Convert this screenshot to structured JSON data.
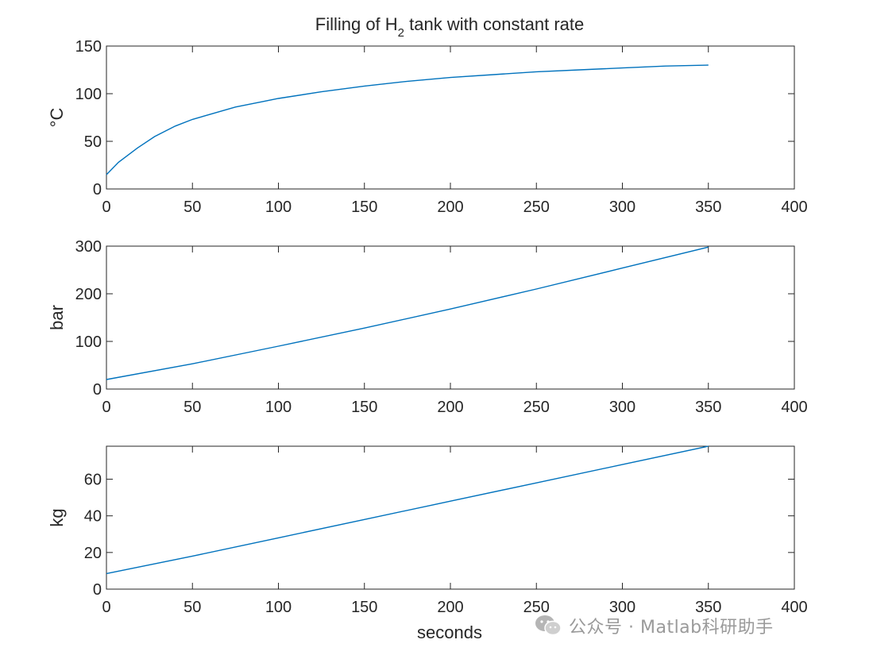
{
  "chart_data": [
    {
      "type": "line",
      "title": "Filling of H",
      "title_subscript": "2",
      "title_suffix": " tank with constant rate",
      "xlabel": "",
      "ylabel": "°C",
      "xlim": [
        0,
        400
      ],
      "ylim": [
        0,
        150
      ],
      "xticks": [
        0,
        50,
        100,
        150,
        200,
        250,
        300,
        350,
        400
      ],
      "yticks": [
        0,
        50,
        100,
        150
      ],
      "grid": false,
      "color": "#0072BD",
      "series": [
        {
          "x": [
            0,
            7,
            18,
            28,
            40,
            50,
            75,
            100,
            125,
            150,
            175,
            200,
            225,
            250,
            275,
            300,
            325,
            350
          ],
          "y": [
            15,
            28,
            43,
            55,
            66,
            73,
            86,
            95,
            102,
            108,
            113,
            117,
            120,
            123,
            125,
            127,
            129,
            130
          ]
        }
      ]
    },
    {
      "type": "line",
      "title": "",
      "xlabel": "",
      "ylabel": "bar",
      "xlim": [
        0,
        400
      ],
      "ylim": [
        0,
        300
      ],
      "xticks": [
        0,
        50,
        100,
        150,
        200,
        250,
        300,
        350,
        400
      ],
      "yticks": [
        0,
        100,
        200,
        300
      ],
      "grid": false,
      "color": "#0072BD",
      "series": [
        {
          "x": [
            0,
            50,
            100,
            150,
            200,
            250,
            300,
            350
          ],
          "y": [
            20,
            53,
            90,
            128,
            168,
            210,
            254,
            298
          ]
        }
      ]
    },
    {
      "type": "line",
      "title": "",
      "xlabel": "seconds",
      "ylabel": "kg",
      "xlim": [
        0,
        400
      ],
      "ylim": [
        0,
        78
      ],
      "xticks": [
        0,
        50,
        100,
        150,
        200,
        250,
        300,
        350,
        400
      ],
      "yticks": [
        0,
        20,
        40,
        60
      ],
      "grid": false,
      "color": "#0072BD",
      "series": [
        {
          "x": [
            0,
            50,
            100,
            150,
            200,
            250,
            300,
            350
          ],
          "y": [
            8.5,
            18,
            28,
            38,
            48,
            58,
            68,
            78
          ]
        }
      ]
    }
  ],
  "watermark": {
    "text": "公众号 · Matlab科研助手",
    "icon": "wechat-icon"
  }
}
